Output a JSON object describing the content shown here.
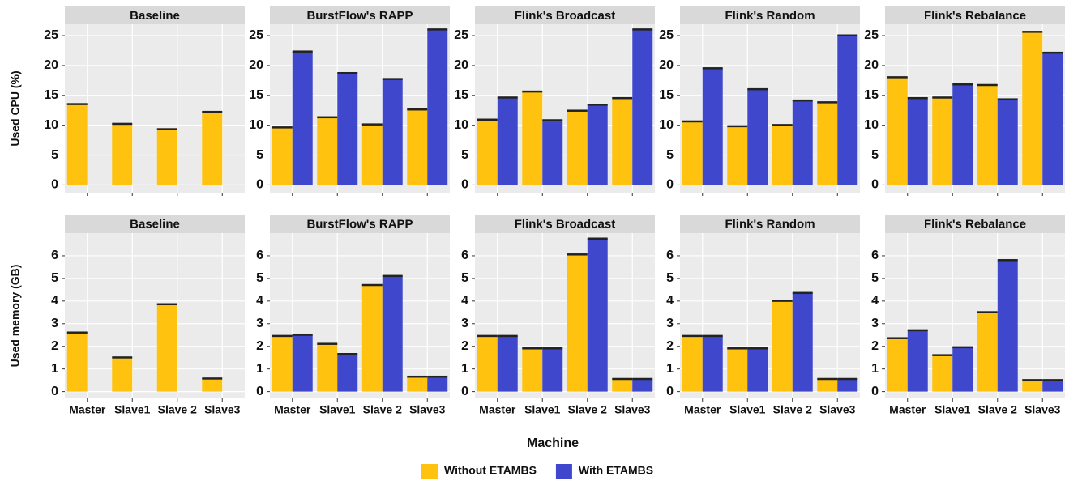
{
  "figure": {
    "xlabel": "Machine"
  },
  "chart_data": [
    {
      "type": "bar",
      "title": "Baseline",
      "ylabel": "Used CPU (%)",
      "categories": [
        null,
        null,
        null,
        null
      ],
      "series": [
        {
          "name": "Without ETAMBS",
          "color": "#ffc20e",
          "values": [
            13.5,
            10.2,
            9.3,
            12.2
          ]
        }
      ],
      "ylim": [
        -1.3,
        26.9
      ],
      "yticks": [
        0,
        5,
        10,
        15,
        20,
        25
      ],
      "grid": true
    },
    {
      "type": "bar",
      "title": "BurstFlow's RAPP",
      "categories": [
        null,
        null,
        null,
        null
      ],
      "series": [
        {
          "name": "Without ETAMBS",
          "color": "#ffc20e",
          "values": [
            9.6,
            11.3,
            10.1,
            12.6
          ]
        },
        {
          "name": "With ETAMBS",
          "color": "#3f48cc",
          "values": [
            22.3,
            18.7,
            17.7,
            26.0
          ]
        }
      ],
      "ylim": [
        -1.3,
        26.9
      ],
      "yticks": [
        0,
        5,
        10,
        15,
        20,
        25
      ],
      "grid": true
    },
    {
      "type": "bar",
      "title": "Flink's Broadcast",
      "categories": [
        null,
        null,
        null,
        null
      ],
      "series": [
        {
          "name": "Without ETAMBS",
          "color": "#ffc20e",
          "values": [
            10.9,
            15.6,
            12.4,
            14.5
          ]
        },
        {
          "name": "With ETAMBS",
          "color": "#3f48cc",
          "values": [
            14.6,
            10.8,
            13.4,
            26.0
          ]
        }
      ],
      "ylim": [
        -1.3,
        26.9
      ],
      "yticks": [
        0,
        5,
        10,
        15,
        20,
        25
      ],
      "grid": true
    },
    {
      "type": "bar",
      "title": "Flink's Random",
      "categories": [
        null,
        null,
        null,
        null
      ],
      "series": [
        {
          "name": "Without ETAMBS",
          "color": "#ffc20e",
          "values": [
            10.6,
            9.8,
            10.0,
            13.8
          ]
        },
        {
          "name": "With ETAMBS",
          "color": "#3f48cc",
          "values": [
            19.5,
            16.0,
            14.1,
            25.0
          ]
        }
      ],
      "ylim": [
        -1.3,
        26.9
      ],
      "yticks": [
        0,
        5,
        10,
        15,
        20,
        25
      ],
      "grid": true
    },
    {
      "type": "bar",
      "title": "Flink's Rebalance",
      "categories": [
        null,
        null,
        null,
        null
      ],
      "series": [
        {
          "name": "Without ETAMBS",
          "color": "#ffc20e",
          "values": [
            18.0,
            14.6,
            16.7,
            25.6
          ]
        },
        {
          "name": "With ETAMBS",
          "color": "#3f48cc",
          "values": [
            14.5,
            16.8,
            14.3,
            22.1
          ]
        }
      ],
      "ylim": [
        -1.3,
        26.9
      ],
      "yticks": [
        0,
        5,
        10,
        15,
        20,
        25
      ],
      "grid": true
    },
    {
      "type": "bar",
      "title": "Baseline",
      "ylabel": "Used memory (GB)",
      "categories": [
        "Master",
        "Slave1",
        "Slave 2",
        "Slave3"
      ],
      "series": [
        {
          "name": "Without ETAMBS",
          "color": "#ffc20e",
          "values": [
            2.6,
            1.5,
            3.85,
            0.57
          ]
        }
      ],
      "ylim": [
        -0.3,
        7.0
      ],
      "yticks": [
        0,
        1,
        2,
        3,
        4,
        5,
        6
      ],
      "grid": true
    },
    {
      "type": "bar",
      "title": "BurstFlow's RAPP",
      "categories": [
        "Master",
        "Slave1",
        "Slave 2",
        "Slave3"
      ],
      "series": [
        {
          "name": "Without ETAMBS",
          "color": "#ffc20e",
          "values": [
            2.45,
            2.1,
            4.7,
            0.65
          ]
        },
        {
          "name": "With ETAMBS",
          "color": "#3f48cc",
          "values": [
            2.5,
            1.65,
            5.1,
            0.65
          ]
        }
      ],
      "ylim": [
        -0.3,
        7.0
      ],
      "yticks": [
        0,
        1,
        2,
        3,
        4,
        5,
        6
      ],
      "grid": true
    },
    {
      "type": "bar",
      "title": "Flink's Broadcast",
      "categories": [
        "Master",
        "Slave1",
        "Slave 2",
        "Slave3"
      ],
      "series": [
        {
          "name": "Without ETAMBS",
          "color": "#ffc20e",
          "values": [
            2.45,
            1.9,
            6.05,
            0.55
          ]
        },
        {
          "name": "With ETAMBS",
          "color": "#3f48cc",
          "values": [
            2.45,
            1.9,
            6.75,
            0.55
          ]
        }
      ],
      "ylim": [
        -0.3,
        7.0
      ],
      "yticks": [
        0,
        1,
        2,
        3,
        4,
        5,
        6
      ],
      "grid": true
    },
    {
      "type": "bar",
      "title": "Flink's Random",
      "categories": [
        "Master",
        "Slave1",
        "Slave 2",
        "Slave3"
      ],
      "series": [
        {
          "name": "Without ETAMBS",
          "color": "#ffc20e",
          "values": [
            2.45,
            1.9,
            4.0,
            0.55
          ]
        },
        {
          "name": "With ETAMBS",
          "color": "#3f48cc",
          "values": [
            2.45,
            1.9,
            4.35,
            0.55
          ]
        }
      ],
      "ylim": [
        -0.3,
        7.0
      ],
      "yticks": [
        0,
        1,
        2,
        3,
        4,
        5,
        6
      ],
      "grid": true
    },
    {
      "type": "bar",
      "title": "Flink's Rebalance",
      "categories": [
        "Master",
        "Slave1",
        "Slave 2",
        "Slave3"
      ],
      "series": [
        {
          "name": "Without ETAMBS",
          "color": "#ffc20e",
          "values": [
            2.35,
            1.6,
            3.5,
            0.5
          ]
        },
        {
          "name": "With ETAMBS",
          "color": "#3f48cc",
          "values": [
            2.7,
            1.95,
            5.8,
            0.5
          ]
        }
      ],
      "ylim": [
        -0.3,
        7.0
      ],
      "yticks": [
        0,
        1,
        2,
        3,
        4,
        5,
        6
      ],
      "grid": true
    }
  ]
}
